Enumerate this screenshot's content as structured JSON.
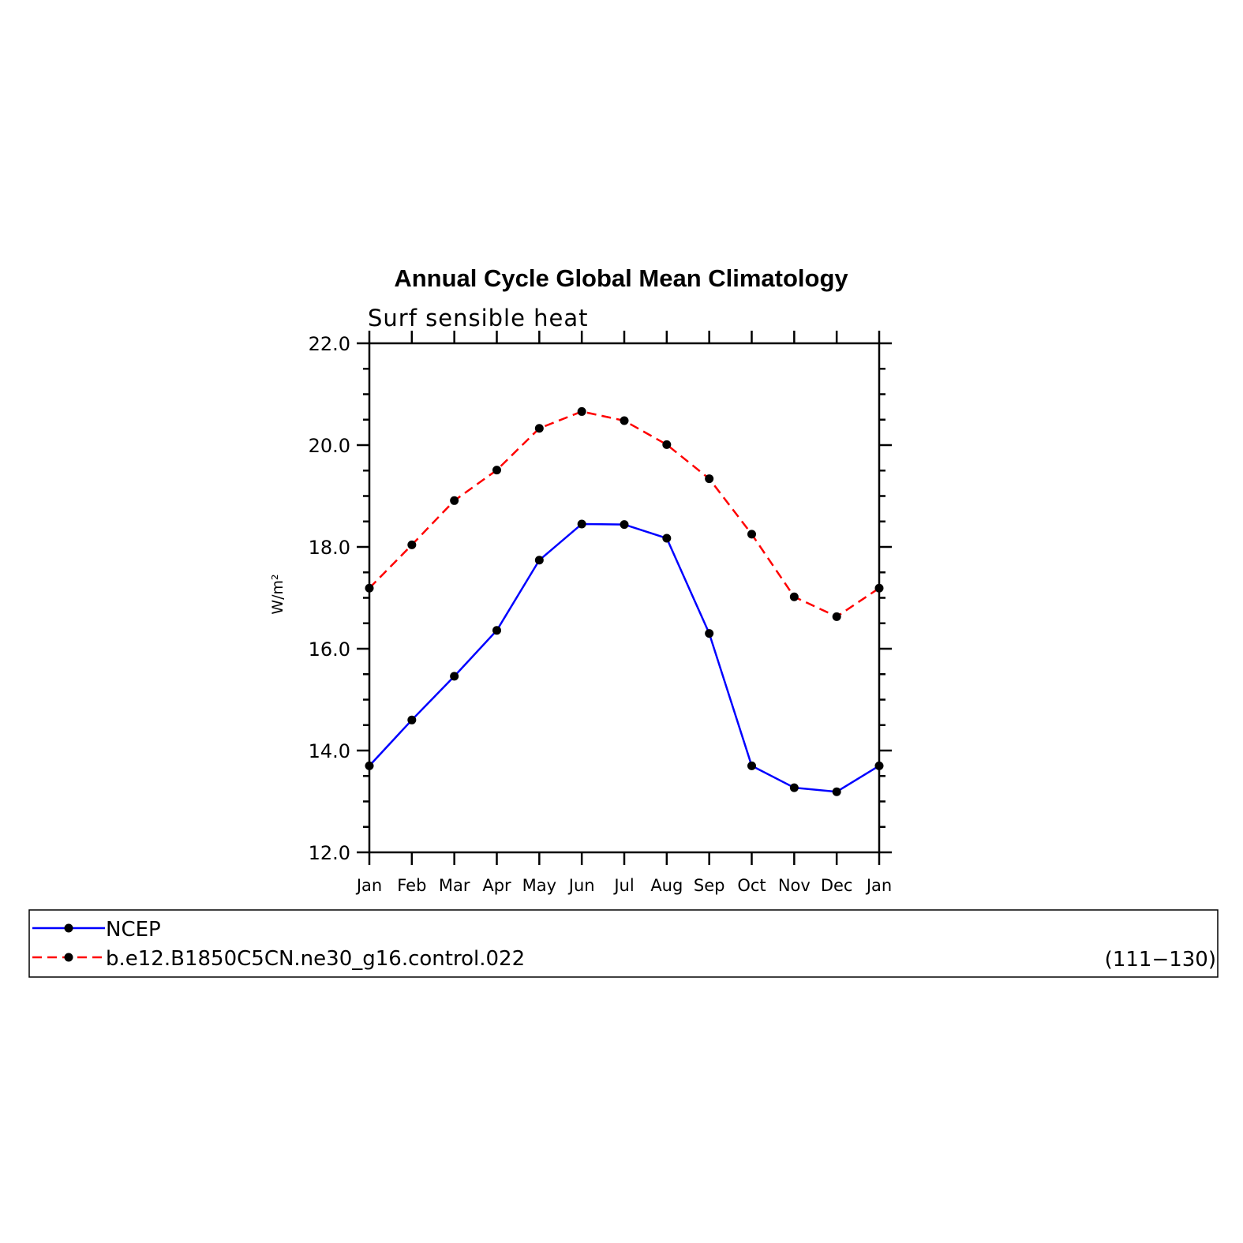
{
  "chart_data": {
    "type": "line",
    "title": "Annual Cycle Global Mean Climatology",
    "subtitle": "Surf  sensible  heat",
    "xlabel": "",
    "ylabel": "W/m²",
    "categories": [
      "Jan",
      "Feb",
      "Mar",
      "Apr",
      "May",
      "Jun",
      "Jul",
      "Aug",
      "Sep",
      "Oct",
      "Nov",
      "Dec",
      "Jan"
    ],
    "ylim": [
      12.0,
      22.0
    ],
    "yticks": [
      "12.0",
      "14.0",
      "16.0",
      "18.0",
      "20.0",
      "22.0"
    ],
    "grid": false,
    "legend_position": "bottom",
    "series": [
      {
        "name": "NCEP",
        "color": "#0000ff",
        "dash": "solid",
        "marker": "filled-circle",
        "values": [
          13.7,
          14.6,
          15.46,
          16.36,
          17.74,
          18.45,
          18.44,
          18.17,
          16.3,
          13.7,
          13.27,
          13.19,
          13.7
        ]
      },
      {
        "name": "b.e12.B1850C5CN.ne30_g16.control.022",
        "color": "#ff0000",
        "dash": "dashed",
        "marker": "filled-circle",
        "values": [
          17.19,
          18.04,
          18.91,
          19.51,
          20.33,
          20.66,
          20.48,
          20.01,
          19.34,
          18.25,
          17.02,
          16.63,
          17.19
        ]
      }
    ]
  },
  "legend": {
    "years": "(111−130)"
  }
}
